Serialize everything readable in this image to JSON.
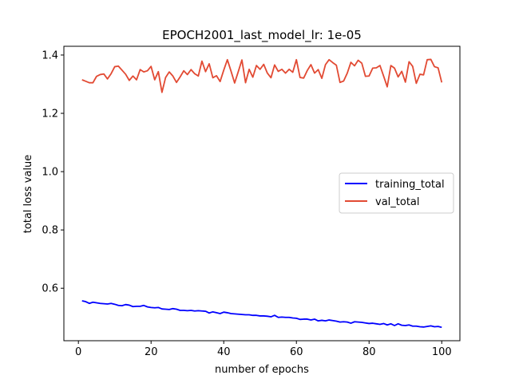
{
  "chart_data": {
    "type": "line",
    "title": "EPOCH2001_last_model_lr: 1e-05",
    "xlabel": "number of epochs",
    "ylabel": "total loss value",
    "xlim": [
      -4,
      105
    ],
    "ylim": [
      0.42,
      1.43
    ],
    "x_ticks": [
      0,
      20,
      40,
      60,
      80,
      100
    ],
    "x_tick_labels": [
      "0",
      "20",
      "40",
      "60",
      "80",
      "100"
    ],
    "y_ticks": [
      0.6,
      0.8,
      1.0,
      1.2,
      1.4
    ],
    "y_tick_labels": [
      "0.6",
      "0.8",
      "1.0",
      "1.2",
      "1.4"
    ],
    "grid": false,
    "legend_position": "center-right",
    "x": [
      1,
      2,
      3,
      4,
      5,
      6,
      7,
      8,
      9,
      10,
      11,
      12,
      13,
      14,
      15,
      16,
      17,
      18,
      19,
      20,
      21,
      22,
      23,
      24,
      25,
      26,
      27,
      28,
      29,
      30,
      31,
      32,
      33,
      34,
      35,
      36,
      37,
      38,
      39,
      40,
      41,
      42,
      43,
      44,
      45,
      46,
      47,
      48,
      49,
      50,
      51,
      52,
      53,
      54,
      55,
      56,
      57,
      58,
      59,
      60,
      61,
      62,
      63,
      64,
      65,
      66,
      67,
      68,
      69,
      70,
      71,
      72,
      73,
      74,
      75,
      76,
      77,
      78,
      79,
      80,
      81,
      82,
      83,
      84,
      85,
      86,
      87,
      88,
      89,
      90,
      91,
      92,
      93,
      94,
      95,
      96,
      97,
      98,
      99,
      100
    ],
    "series": [
      {
        "name": "training_total",
        "color": "#0000ff",
        "values": [
          0.557,
          0.554,
          0.548,
          0.552,
          0.55,
          0.548,
          0.547,
          0.546,
          0.548,
          0.545,
          0.541,
          0.54,
          0.544,
          0.542,
          0.537,
          0.538,
          0.538,
          0.541,
          0.536,
          0.534,
          0.533,
          0.534,
          0.529,
          0.528,
          0.527,
          0.53,
          0.528,
          0.524,
          0.524,
          0.523,
          0.524,
          0.522,
          0.523,
          0.522,
          0.521,
          0.515,
          0.519,
          0.516,
          0.513,
          0.518,
          0.516,
          0.513,
          0.512,
          0.511,
          0.51,
          0.509,
          0.509,
          0.507,
          0.507,
          0.505,
          0.505,
          0.504,
          0.502,
          0.507,
          0.5,
          0.501,
          0.5,
          0.5,
          0.498,
          0.497,
          0.493,
          0.494,
          0.494,
          0.491,
          0.494,
          0.488,
          0.49,
          0.488,
          0.491,
          0.489,
          0.487,
          0.484,
          0.485,
          0.484,
          0.48,
          0.485,
          0.484,
          0.483,
          0.481,
          0.479,
          0.48,
          0.478,
          0.476,
          0.479,
          0.474,
          0.478,
          0.472,
          0.478,
          0.473,
          0.472,
          0.474,
          0.47,
          0.47,
          0.468,
          0.467,
          0.469,
          0.471,
          0.468,
          0.469,
          0.466
        ]
      },
      {
        "name": "val_total",
        "color": "#e24a33",
        "values": [
          1.315,
          1.31,
          1.305,
          1.305,
          1.327,
          1.333,
          1.335,
          1.318,
          1.336,
          1.36,
          1.362,
          1.348,
          1.334,
          1.313,
          1.328,
          1.315,
          1.35,
          1.342,
          1.346,
          1.361,
          1.315,
          1.343,
          1.272,
          1.323,
          1.342,
          1.328,
          1.306,
          1.325,
          1.346,
          1.333,
          1.35,
          1.336,
          1.328,
          1.379,
          1.343,
          1.37,
          1.322,
          1.329,
          1.309,
          1.348,
          1.384,
          1.345,
          1.304,
          1.343,
          1.383,
          1.305,
          1.351,
          1.324,
          1.364,
          1.351,
          1.368,
          1.338,
          1.322,
          1.366,
          1.344,
          1.351,
          1.338,
          1.351,
          1.341,
          1.384,
          1.323,
          1.321,
          1.347,
          1.367,
          1.338,
          1.35,
          1.32,
          1.367,
          1.384,
          1.374,
          1.365,
          1.306,
          1.311,
          1.338,
          1.375,
          1.363,
          1.382,
          1.372,
          1.327,
          1.328,
          1.355,
          1.356,
          1.364,
          1.328,
          1.291,
          1.364,
          1.355,
          1.325,
          1.344,
          1.307,
          1.377,
          1.361,
          1.303,
          1.334,
          1.332,
          1.384,
          1.385,
          1.36,
          1.356,
          1.306
        ]
      }
    ]
  }
}
